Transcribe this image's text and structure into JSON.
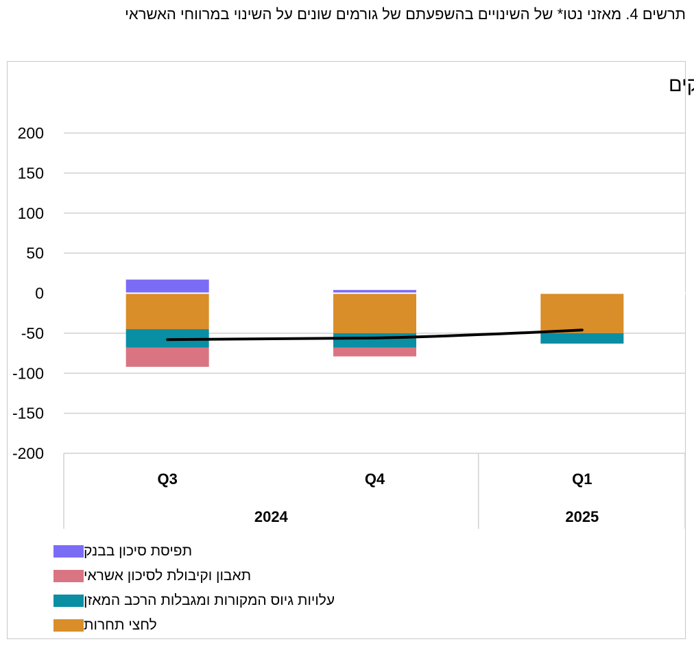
{
  "figure_title": "תרשים 4. מאזני נטו* של השינויים בהשפעתם של גורמים שונים על השינוי במרווחי האשראי",
  "colors": {
    "bank_risk": "#7b6cf6",
    "credit_risk": "#d97582",
    "funding": "#0a8ea3",
    "competition": "#d98e29",
    "line": "#000000",
    "grid": "#d0d0d0"
  },
  "chart_data": {
    "type": "bar",
    "stacked": true,
    "title": "א. אשראי לעסקים",
    "categories": [
      "Q3",
      "Q4",
      "Q1"
    ],
    "year_groups": [
      {
        "label": "2024",
        "categories": [
          "Q3",
          "Q4"
        ]
      },
      {
        "label": "2025",
        "categories": [
          "Q1"
        ]
      }
    ],
    "ylim": [
      -200,
      200
    ],
    "yticks": [
      200,
      150,
      100,
      50,
      0,
      -50,
      -100,
      -150,
      -200
    ],
    "grid": true,
    "legend_position": "bottom-left",
    "series": [
      {
        "name": "תפיסת סיכון בבנק",
        "color_key": "bank_risk",
        "values": [
          17,
          4,
          0
        ]
      },
      {
        "name": "תאבון וקיבולת לסיכון אשראי",
        "color_key": "credit_risk",
        "values": [
          -24,
          -11,
          0
        ]
      },
      {
        "name": "עלויות גיוס המקורות ומגבלות הרכב המאזן",
        "color_key": "funding",
        "values": [
          -23,
          -18,
          -13
        ]
      },
      {
        "name": "לחצי תחרות",
        "color_key": "competition",
        "values": [
          -45,
          -50,
          -50
        ]
      }
    ],
    "line": {
      "values": [
        -58,
        -56,
        -46
      ]
    }
  }
}
